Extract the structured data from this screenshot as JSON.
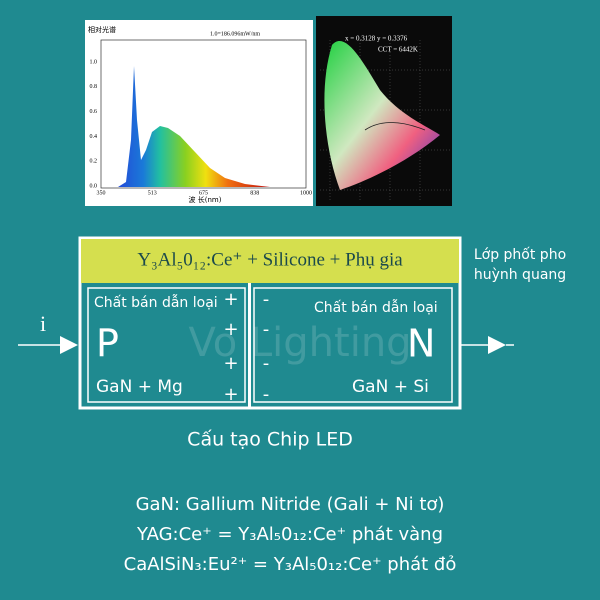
{
  "spectrum": {
    "title": "相对光谱",
    "scale": "1.0=186.096mW/nm",
    "yticks": [
      "1.0",
      "0.8",
      "0.6",
      "0.4",
      "0.2",
      "0.0"
    ],
    "xticks": [
      "350",
      "513",
      "675",
      "838",
      "1000"
    ],
    "xlabel": "波 长(nm)"
  },
  "cie": {
    "coords": "x = 0.3128 y = 0.3376",
    "cct": "CCT = 6442K"
  },
  "chip": {
    "coating": "Y₃Al₅0₁₂:Ce⁺ + Silicone + Phụ gia",
    "coating_label": [
      "Lớp phốt pho",
      "huỳnh quang"
    ],
    "current": "i",
    "p": {
      "type_label": "Chất bán dẫn loại",
      "letter": "P",
      "material": "GaN + Mg",
      "charges": [
        "+",
        "+",
        "+",
        "+"
      ]
    },
    "n": {
      "type_label": "Chất bán dẫn loại",
      "letter": "N",
      "material": "GaN + Si",
      "charges": [
        "-",
        "-",
        "-",
        "-"
      ]
    },
    "caption": "Cấu tạo Chip LED"
  },
  "watermark": "Vo Lighting",
  "notes": [
    "GaN: Gallium Nitride (Gali + Ni tơ)",
    "YAG:Ce⁺ = Y₃Al₅0₁₂:Ce⁺ phát vàng",
    "CaAlSiN₃:Eu²⁺ = Y₃Al₅0₁₂:Ce⁺ phát đỏ"
  ]
}
